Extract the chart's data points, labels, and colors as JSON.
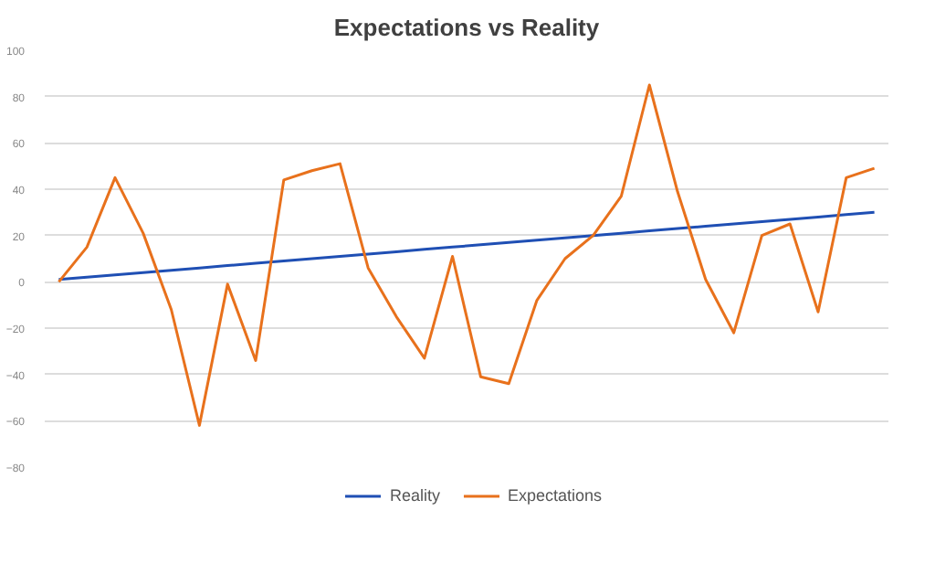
{
  "chart_data": {
    "type": "line",
    "title": "Expectations vs Reality",
    "categories": [
      null,
      null,
      null,
      null,
      null,
      null,
      null,
      null,
      null,
      null,
      null,
      null,
      null,
      null,
      null,
      null,
      null,
      null,
      null,
      null,
      null,
      null,
      null,
      null,
      null,
      null,
      null,
      null,
      null,
      null
    ],
    "series": [
      {
        "name": "Reality",
        "color": "#1f4fb4",
        "values": [
          1,
          2,
          3,
          4,
          5,
          6,
          7,
          8,
          9,
          10,
          11,
          12,
          13,
          14,
          15,
          16,
          17,
          18,
          19,
          20,
          21,
          22,
          23,
          24,
          25,
          26,
          27,
          28,
          29,
          30
        ]
      },
      {
        "name": "Expectations",
        "color": "#e8711c",
        "values": [
          0,
          15,
          45,
          21,
          -12,
          -62,
          -1,
          -34,
          44,
          48,
          51,
          6,
          -15,
          -33,
          11,
          -41,
          -44,
          -8,
          10,
          20,
          37,
          85,
          39,
          1,
          -22,
          20,
          25,
          -13,
          45,
          49
        ]
      }
    ],
    "ylim": [
      -80,
      100
    ],
    "yticks": [
      -80,
      -60,
      -40,
      -20,
      0,
      20,
      40,
      60,
      80,
      100
    ],
    "grid": "y",
    "legend": "bottom",
    "tick_labels": "y"
  }
}
